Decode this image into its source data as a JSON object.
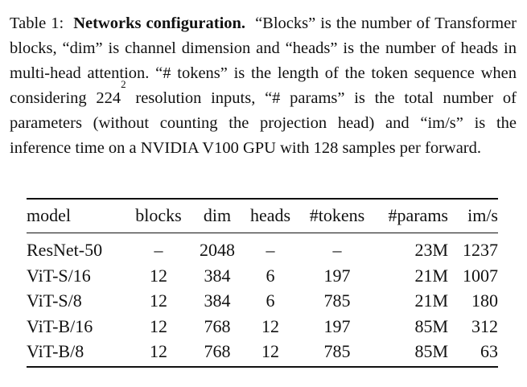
{
  "caption": {
    "label": "Table 1:",
    "title": "Networks configuration.",
    "text_part1": "“Blocks” is the number of Transformer blocks, “dim” is channel dimension and “heads” is the number of heads in multi-head attention. “# tokens” is the length of the token sequence when considering ",
    "math_base": "224",
    "math_exp": "2",
    "text_part2": " resolution inputs, “# params” is the total number of parameters (without counting the projection head) and “im/s” is the inference time on a NVIDIA V100 GPU with 128 samples per forward."
  },
  "table": {
    "headers": [
      "model",
      "blocks",
      "dim",
      "heads",
      "#tokens",
      "#params",
      "im/s"
    ],
    "rows": [
      [
        "ResNet-50",
        "–",
        "2048",
        "–",
        "–",
        "23M",
        "1237"
      ],
      [
        "ViT-S/16",
        "12",
        "384",
        "6",
        "197",
        "21M",
        "1007"
      ],
      [
        "ViT-S/8",
        "12",
        "384",
        "6",
        "785",
        "21M",
        "180"
      ],
      [
        "ViT-B/16",
        "12",
        "768",
        "12",
        "197",
        "85M",
        "312"
      ],
      [
        "ViT-B/8",
        "12",
        "768",
        "12",
        "785",
        "85M",
        "63"
      ]
    ]
  }
}
